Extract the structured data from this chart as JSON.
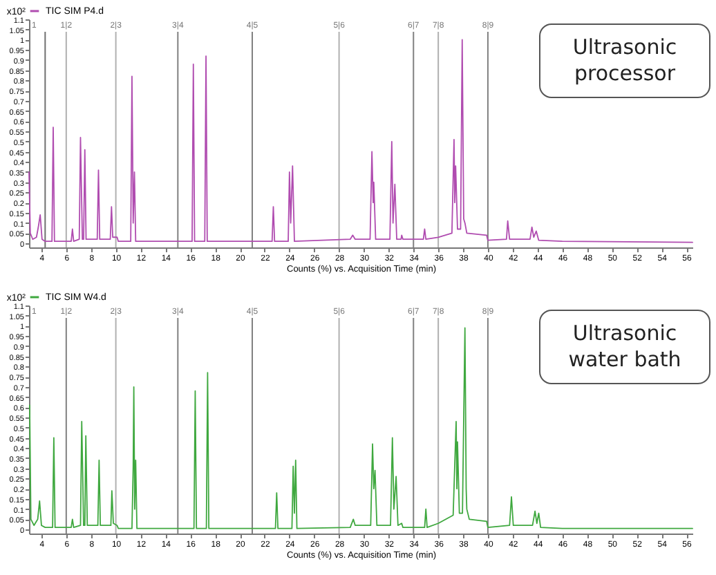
{
  "chart_data": [
    {
      "type": "line",
      "xlabel": "Counts (%) vs. Acquisition Time (min)",
      "ylabel": "x10²",
      "legend": "top left",
      "xlim": [
        3,
        56.5
      ],
      "ylim": [
        -0.02,
        1.1
      ],
      "xticks": [
        4,
        6,
        8,
        10,
        12,
        14,
        16,
        18,
        20,
        22,
        24,
        26,
        28,
        30,
        32,
        34,
        36,
        38,
        40,
        42,
        44,
        46,
        48,
        50,
        52,
        54,
        56
      ],
      "yticks": [
        0,
        0.05,
        0.1,
        0.15,
        0.2,
        0.25,
        0.3,
        0.35,
        0.4,
        0.45,
        0.5,
        0.55,
        0.6,
        0.65,
        0.7,
        0.75,
        0.8,
        0.85,
        0.9,
        0.95,
        1,
        1.05,
        1.1
      ],
      "annotations": [
        "Ultrasonic processor",
        "1",
        "1|2",
        "2|3",
        "3|4",
        "4|5",
        "5|6",
        "6|7",
        "7|8",
        "8|9"
      ],
      "ref_lines": [
        {
          "axis": "x",
          "value": 6,
          "color": "#b0b0b0"
        },
        {
          "axis": "x",
          "value": 10,
          "color": "#b0b0b0"
        },
        {
          "axis": "x",
          "value": 15,
          "color": "#808080"
        },
        {
          "axis": "x",
          "value": 21,
          "color": "#808080"
        },
        {
          "axis": "x",
          "value": 28,
          "color": "#b0b0b0"
        },
        {
          "axis": "x",
          "value": 34,
          "color": "#808080"
        },
        {
          "axis": "x",
          "value": 36,
          "color": "#b0b0b0"
        },
        {
          "axis": "x",
          "value": 40,
          "color": "#808080"
        },
        {
          "axis": "x",
          "value": 4.3,
          "color": "#707070"
        }
      ],
      "series": [
        {
          "name": "TIC SIM P4.d",
          "color": "#b04cb0",
          "x": [
            3.0,
            3.1,
            3.3,
            3.6,
            3.75,
            3.9,
            4.05,
            4.3,
            4.85,
            4.95,
            5.05,
            6.4,
            6.5,
            6.6,
            7.05,
            7.15,
            7.3,
            7.4,
            7.5,
            7.6,
            8.5,
            8.6,
            8.7,
            9.55,
            9.65,
            9.75,
            10.1,
            10.2,
            11.2,
            11.3,
            11.4,
            11.5,
            11.6,
            12.6,
            16.15,
            16.25,
            16.35,
            17.17,
            17.27,
            17.37,
            22.6,
            22.7,
            22.8,
            23.9,
            24.0,
            24.1,
            24.25,
            24.4,
            28.9,
            29.1,
            29.3,
            30.5,
            30.65,
            30.75,
            30.8,
            30.95,
            32.1,
            32.25,
            32.35,
            32.5,
            32.65,
            33.0,
            33.05,
            33.15,
            34.8,
            34.9,
            35.0,
            36.0,
            37.1,
            37.27,
            37.33,
            37.4,
            37.55,
            37.8,
            37.93,
            38.05,
            38.15,
            38.3,
            39.9,
            40.0,
            41.5,
            41.6,
            41.75,
            43.4,
            43.55,
            43.7,
            43.9,
            44.1,
            46,
            56.5
          ],
          "values": [
            0.35,
            0.05,
            0.02,
            0.03,
            0.08,
            0.14,
            0.02,
            0.01,
            0.01,
            0.57,
            0.01,
            0.01,
            0.07,
            0.01,
            0.02,
            0.52,
            0.02,
            0.02,
            0.46,
            0.02,
            0.02,
            0.36,
            0.02,
            0.02,
            0.18,
            0.03,
            0.03,
            0.01,
            0.01,
            0.82,
            0.1,
            0.35,
            0.01,
            0.01,
            0.01,
            0.88,
            0.01,
            0.01,
            0.92,
            0.01,
            0.01,
            0.18,
            0.01,
            0.01,
            0.35,
            0.1,
            0.38,
            0.01,
            0.02,
            0.04,
            0.02,
            0.02,
            0.45,
            0.2,
            0.3,
            0.02,
            0.02,
            0.5,
            0.1,
            0.29,
            0.02,
            0.02,
            0.04,
            0.02,
            0.02,
            0.07,
            0.02,
            0.03,
            0.05,
            0.51,
            0.2,
            0.38,
            0.07,
            0.07,
            1.0,
            0.12,
            0.1,
            0.05,
            0.04,
            0.015,
            0.02,
            0.11,
            0.02,
            0.02,
            0.08,
            0.03,
            0.06,
            0.015,
            0.01,
            0.005
          ]
        }
      ]
    },
    {
      "type": "line",
      "xlabel": "Counts (%) vs. Acquisition Time (min)",
      "ylabel": "x10²",
      "legend": "top left",
      "xlim": [
        3,
        56.5
      ],
      "ylim": [
        -0.02,
        1.1
      ],
      "xticks": [
        4,
        6,
        8,
        10,
        12,
        14,
        16,
        18,
        20,
        22,
        24,
        26,
        28,
        30,
        32,
        34,
        36,
        38,
        40,
        42,
        44,
        46,
        48,
        50,
        52,
        54,
        56
      ],
      "yticks": [
        0,
        0.05,
        0.1,
        0.15,
        0.2,
        0.25,
        0.3,
        0.35,
        0.4,
        0.45,
        0.5,
        0.55,
        0.6,
        0.65,
        0.7,
        0.75,
        0.8,
        0.85,
        0.9,
        0.95,
        1,
        1.05,
        1.1
      ],
      "annotations": [
        "Ultrasonic water bath",
        "1",
        "1|2",
        "2|3",
        "3|4",
        "4|5",
        "5|6",
        "6|7",
        "7|8",
        "8|9"
      ],
      "ref_lines": [
        {
          "axis": "x",
          "value": 6,
          "color": "#808080"
        },
        {
          "axis": "x",
          "value": 10,
          "color": "#b0b0b0"
        },
        {
          "axis": "x",
          "value": 15,
          "color": "#808080"
        },
        {
          "axis": "x",
          "value": 21,
          "color": "#808080"
        },
        {
          "axis": "x",
          "value": 28,
          "color": "#b0b0b0"
        },
        {
          "axis": "x",
          "value": 34,
          "color": "#808080"
        },
        {
          "axis": "x",
          "value": 36,
          "color": "#b0b0b0"
        },
        {
          "axis": "x",
          "value": 40,
          "color": "#808080"
        }
      ],
      "series": [
        {
          "name": "TIC SIM W4.d",
          "color": "#3fa83f",
          "x": [
            3.05,
            3.15,
            3.4,
            3.6,
            3.7,
            3.85,
            4.0,
            4.3,
            4.9,
            5.0,
            5.1,
            6.4,
            6.5,
            6.6,
            7.15,
            7.25,
            7.4,
            7.5,
            7.58,
            7.7,
            8.55,
            8.65,
            8.75,
            9.6,
            9.68,
            9.8,
            10.1,
            10.2,
            11.3,
            11.4,
            11.45,
            11.52,
            11.6,
            11.7,
            16.3,
            16.4,
            16.5,
            17.3,
            17.4,
            17.5,
            22.87,
            22.97,
            23.07,
            24.2,
            24.3,
            24.4,
            24.5,
            24.6,
            28.9,
            29.15,
            29.3,
            30.55,
            30.7,
            30.8,
            30.9,
            31.05,
            32.15,
            32.3,
            32.42,
            32.6,
            32.75,
            33.05,
            33.15,
            34.9,
            35.0,
            35.1,
            36.0,
            37.2,
            37.44,
            37.5,
            37.55,
            37.7,
            37.95,
            38.15,
            38.25,
            38.3,
            38.5,
            39.9,
            40.0,
            41.75,
            41.9,
            42.05,
            43.6,
            43.8,
            43.95,
            44.1,
            44.25,
            46,
            56.5
          ],
          "values": [
            0.61,
            0.05,
            0.02,
            0.04,
            0.05,
            0.14,
            0.02,
            0.01,
            0.01,
            0.45,
            0.01,
            0.01,
            0.05,
            0.01,
            0.02,
            0.53,
            0.02,
            0.02,
            0.46,
            0.02,
            0.02,
            0.34,
            0.02,
            0.02,
            0.19,
            0.03,
            0.02,
            0.005,
            0.005,
            0.31,
            0.7,
            0.1,
            0.34,
            0.005,
            0.005,
            0.68,
            0.005,
            0.005,
            0.77,
            0.005,
            0.005,
            0.18,
            0.005,
            0.005,
            0.31,
            0.08,
            0.34,
            0.005,
            0.01,
            0.05,
            0.02,
            0.02,
            0.42,
            0.2,
            0.29,
            0.02,
            0.02,
            0.45,
            0.1,
            0.26,
            0.02,
            0.03,
            0.01,
            0.01,
            0.1,
            0.01,
            0.03,
            0.07,
            0.53,
            0.2,
            0.43,
            0.08,
            0.08,
            0.99,
            0.2,
            0.1,
            0.05,
            0.04,
            0.01,
            0.02,
            0.16,
            0.02,
            0.02,
            0.09,
            0.03,
            0.08,
            0.01,
            0.005,
            0.005
          ]
        }
      ]
    }
  ]
}
